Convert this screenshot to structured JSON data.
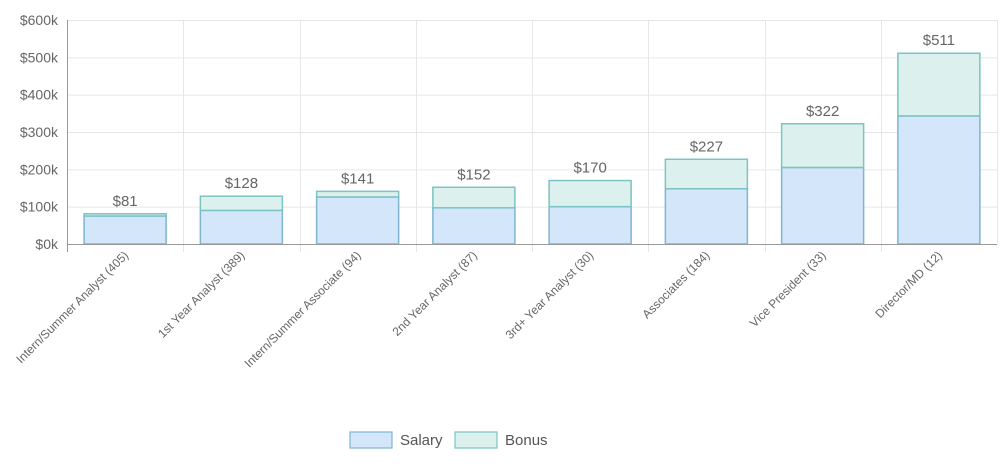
{
  "chart_data": {
    "type": "bar",
    "stacked": true,
    "categories": [
      "Intern/Summer Analyst (405)",
      "1st Year Analyst (389)",
      "Intern/Summer Associate (94)",
      "2nd Year Analyst (87)",
      "3rd+ Year Analyst (30)",
      "Associates (184)",
      "Vice President (33)",
      "Director/MD (12)"
    ],
    "series": [
      {
        "name": "Salary",
        "values": [
          75,
          90,
          126,
          97,
          100,
          148,
          205,
          343
        ],
        "color": "#d4e6fa",
        "stroke": "#7fb5cf"
      },
      {
        "name": "Bonus",
        "values": [
          6,
          38,
          15,
          55,
          70,
          79,
          117,
          168
        ],
        "color": "#dcf1ed",
        "stroke": "#7cc3c3"
      }
    ],
    "totals": [
      "$81",
      "$128",
      "$141",
      "$152",
      "$170",
      "$227",
      "$322",
      "$511"
    ],
    "yticks": [
      0,
      100,
      200,
      300,
      400,
      500,
      600
    ],
    "ytick_labels": [
      "$0k",
      "$100k",
      "$200k",
      "$300k",
      "$400k",
      "$500k",
      "$600k"
    ],
    "ylim": [
      0,
      600
    ],
    "grid": true,
    "legend_position": "bottom-center"
  }
}
